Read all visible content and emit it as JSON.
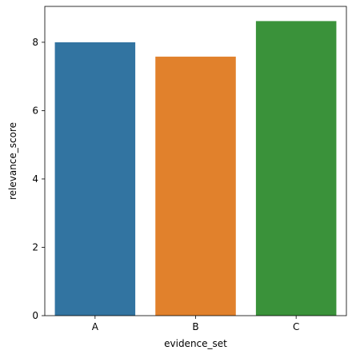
{
  "chart_data": {
    "type": "bar",
    "categories": [
      "A",
      "B",
      "C"
    ],
    "values": [
      8.0,
      7.58,
      8.62
    ],
    "colors": [
      "#3274a1",
      "#e1812c",
      "#3a923a"
    ],
    "xlabel": "evidence_set",
    "ylabel": "relevance_score",
    "ylim": [
      0,
      9.05
    ],
    "yticks": [
      0,
      2,
      4,
      6,
      8
    ],
    "grid": false,
    "legend": "none"
  }
}
